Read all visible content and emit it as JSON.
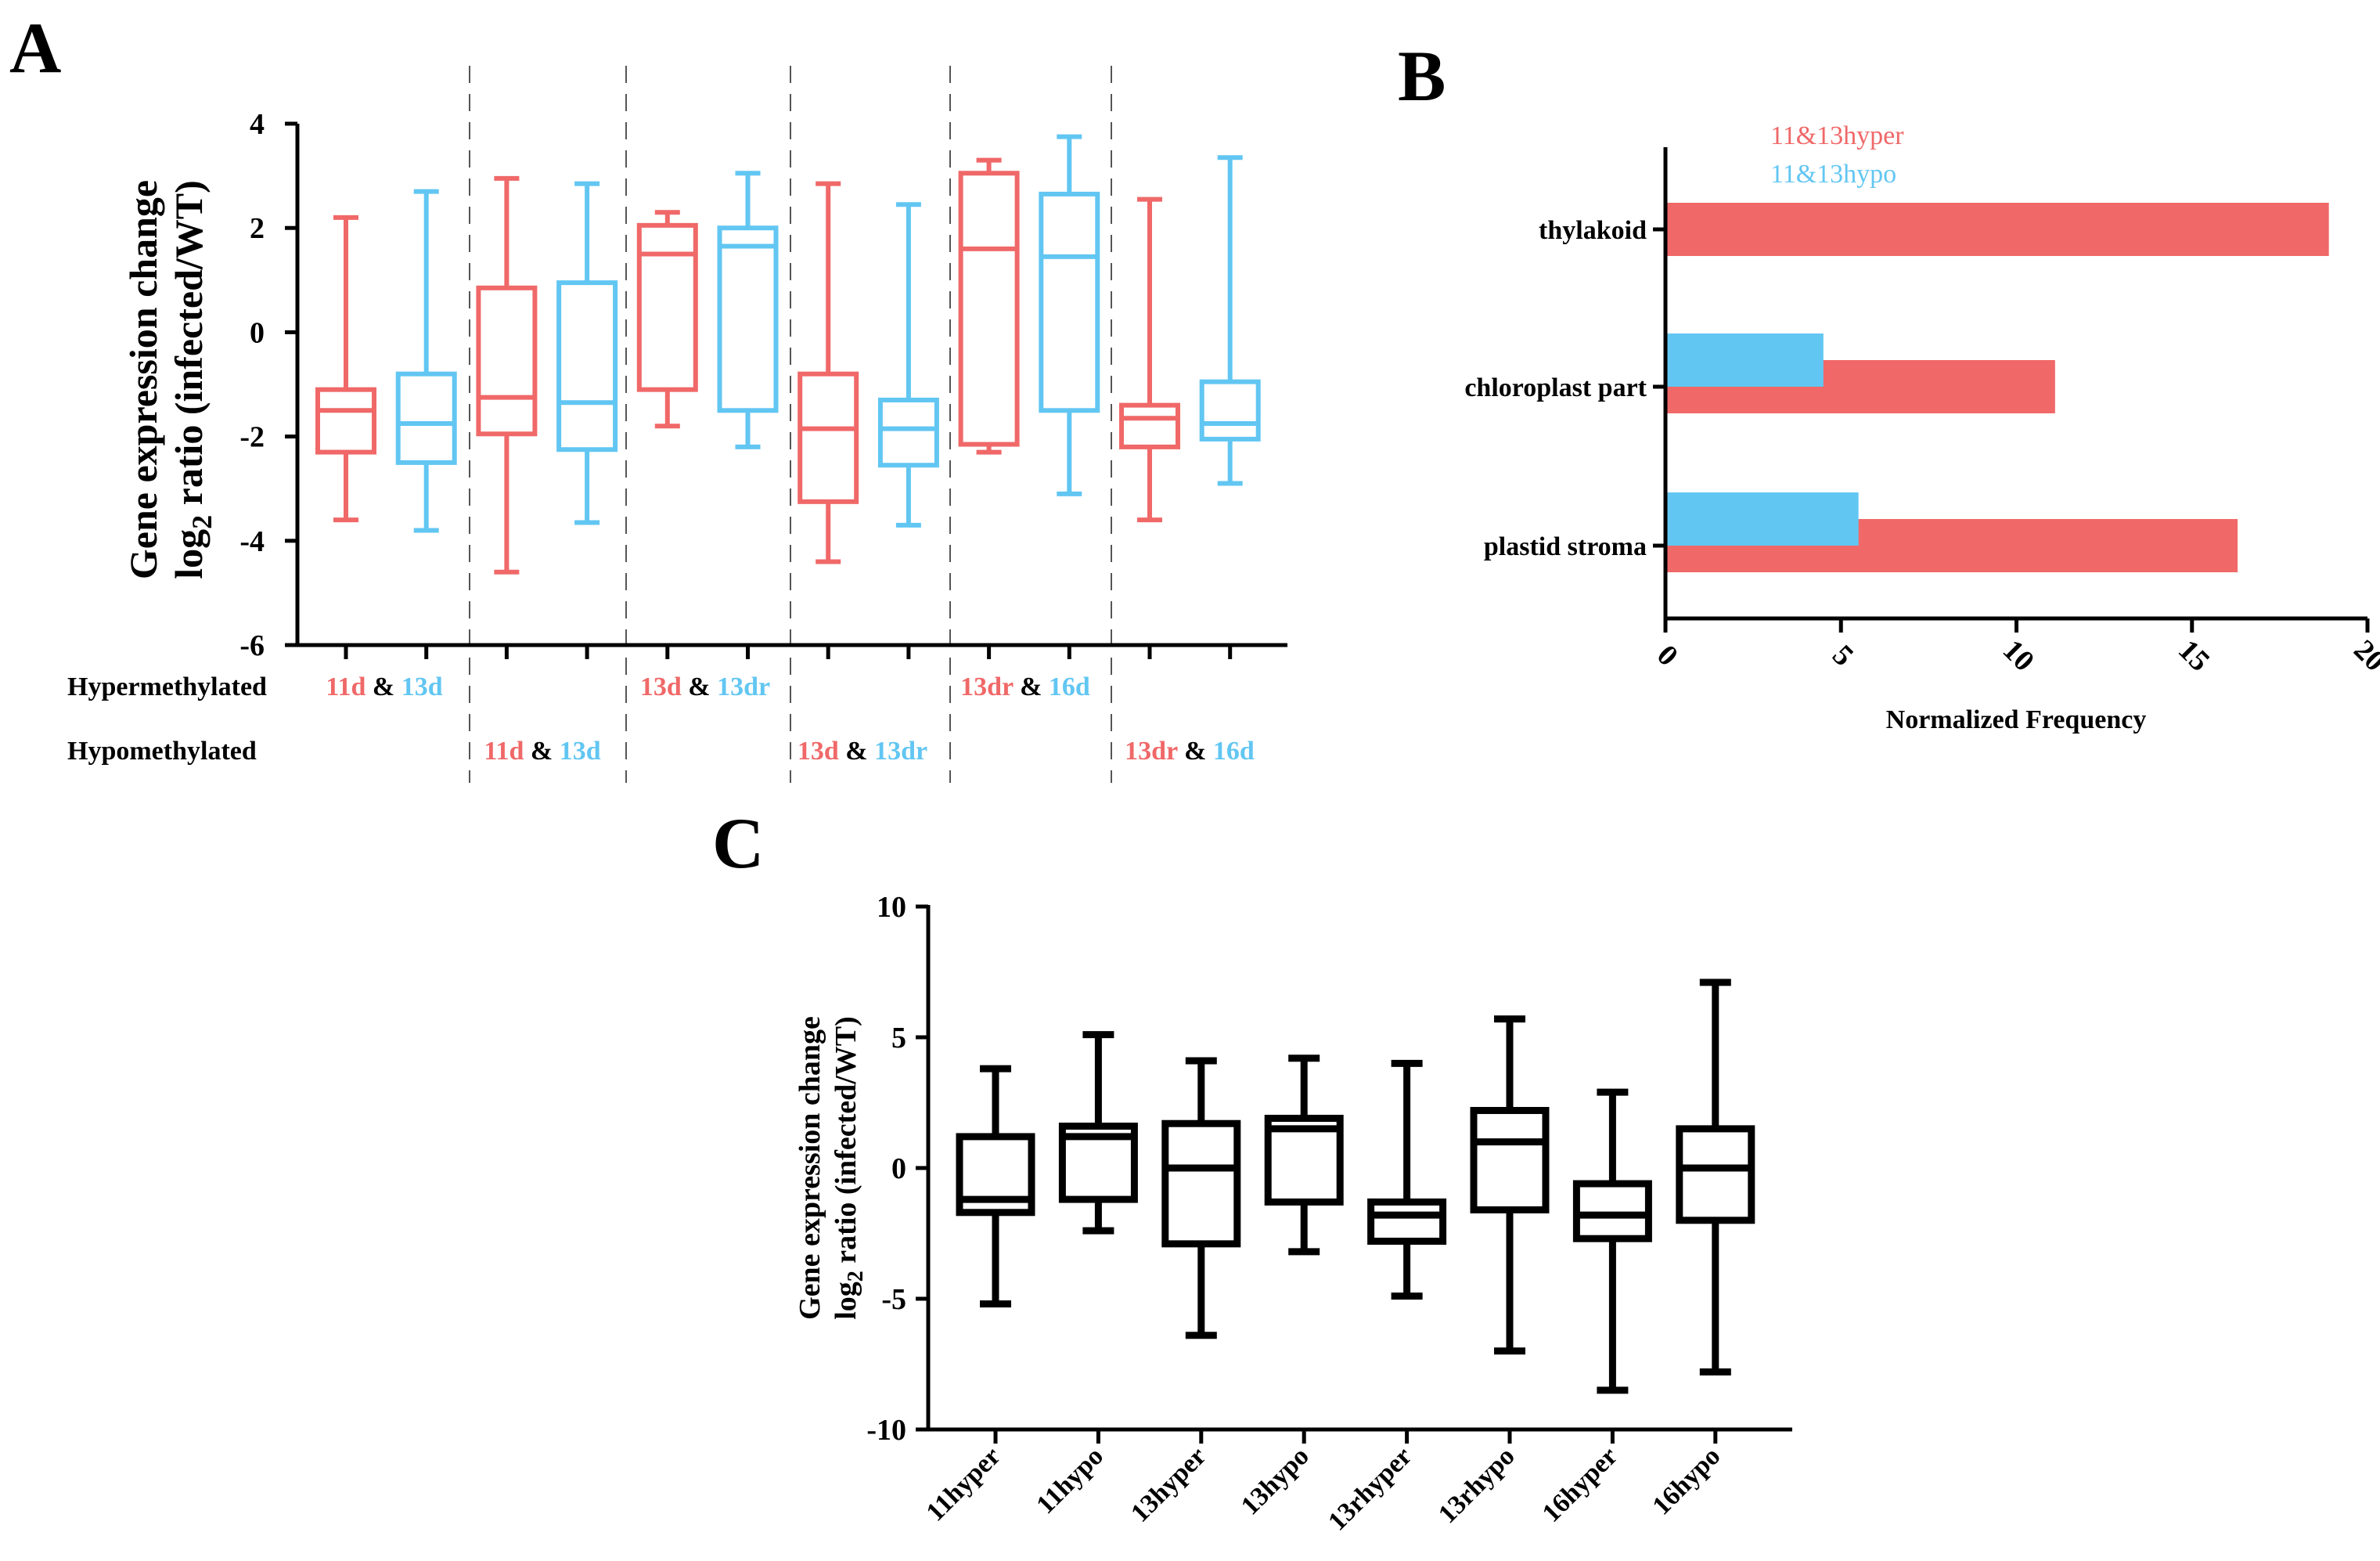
{
  "colors": {
    "red": "#f06868",
    "blue": "#62c6f2",
    "black": "#000000",
    "sep": "#555555"
  },
  "panel_labels": {
    "a": "A",
    "b": "B",
    "c": "C"
  },
  "chart_data": [
    {
      "id": "A",
      "type": "boxplot",
      "ylabel_line1": "Gene expression change",
      "ylabel_line2_prefix": "log",
      "ylabel_line2_sub": "2",
      "ylabel_line2_suffix": " ratio (infected/WT)",
      "ylim": [
        -6,
        4
      ],
      "yticks": [
        4,
        2,
        0,
        -2,
        -4,
        -6
      ],
      "row_labels": {
        "hyper": "Hypermethylated",
        "hypo": "Hypomethylated"
      },
      "amp": "&",
      "boxes": [
        {
          "group": 1,
          "color": "red",
          "min": -3.6,
          "q1": -2.3,
          "median": -1.5,
          "q3": -1.1,
          "max": 2.2
        },
        {
          "group": 1,
          "color": "blue",
          "min": -3.8,
          "q1": -2.5,
          "median": -1.75,
          "q3": -0.8,
          "max": 2.7
        },
        {
          "group": 2,
          "color": "red",
          "min": -4.6,
          "q1": -1.95,
          "median": -1.25,
          "q3": 0.85,
          "max": 2.95
        },
        {
          "group": 2,
          "color": "blue",
          "min": -3.65,
          "q1": -2.25,
          "median": -1.35,
          "q3": 0.95,
          "max": 2.85
        },
        {
          "group": 3,
          "color": "red",
          "min": -1.8,
          "q1": -1.1,
          "median": 1.5,
          "q3": 2.05,
          "max": 2.3
        },
        {
          "group": 3,
          "color": "blue",
          "min": -2.2,
          "q1": -1.5,
          "median": 1.65,
          "q3": 2.0,
          "max": 3.05
        },
        {
          "group": 4,
          "color": "red",
          "min": -4.4,
          "q1": -3.25,
          "median": -1.85,
          "q3": -0.8,
          "max": 2.85
        },
        {
          "group": 4,
          "color": "blue",
          "min": -3.7,
          "q1": -2.55,
          "median": -1.85,
          "q3": -1.3,
          "max": 2.45
        },
        {
          "group": 5,
          "color": "red",
          "min": -2.3,
          "q1": -2.15,
          "median": 1.6,
          "q3": 3.05,
          "max": 3.3
        },
        {
          "group": 5,
          "color": "blue",
          "min": -3.1,
          "q1": -1.5,
          "median": 1.45,
          "q3": 2.65,
          "max": 3.75
        },
        {
          "group": 6,
          "color": "red",
          "min": -3.6,
          "q1": -2.2,
          "median": -1.65,
          "q3": -1.4,
          "max": 2.55
        },
        {
          "group": 6,
          "color": "blue",
          "min": -2.9,
          "q1": -2.05,
          "median": -1.75,
          "q3": -0.95,
          "max": 3.35
        }
      ],
      "conditions": [
        {
          "row": "hyper",
          "group": 1,
          "first": "11d",
          "second": "13d"
        },
        {
          "row": "hyper",
          "group": 3,
          "first": "13d",
          "second": "13dr"
        },
        {
          "row": "hyper",
          "group": 5,
          "first": "13dr",
          "second": "16d"
        },
        {
          "row": "hypo",
          "group": 2,
          "first": "11d",
          "second": "13d"
        },
        {
          "row": "hypo",
          "group": 4,
          "first": "13d",
          "second": "13dr"
        },
        {
          "row": "hypo",
          "group": 6,
          "first": "13dr",
          "second": "16d"
        }
      ]
    },
    {
      "id": "B",
      "type": "horizontal-bar",
      "xlabel": "Normalized Frequency",
      "xlim": [
        0,
        20
      ],
      "xticks": [
        0,
        5,
        10,
        15,
        20
      ],
      "legend": [
        {
          "name": "11&13hyper",
          "color": "red"
        },
        {
          "name": "11&13hypo",
          "color": "blue"
        }
      ],
      "categories": [
        "thylakoid",
        "chloroplast part",
        "plastid stroma"
      ],
      "series": [
        {
          "name": "11&13hyper",
          "color": "red",
          "values": [
            18.9,
            11.1,
            16.3
          ]
        },
        {
          "name": "11&13hypo",
          "color": "blue",
          "values": [
            0,
            4.5,
            5.5
          ]
        }
      ]
    },
    {
      "id": "C",
      "type": "boxplot",
      "ylabel_line1": "Gene expression change",
      "ylabel_line2_prefix": "log",
      "ylabel_line2_sub": "2",
      "ylabel_line2_suffix": " ratio (infected/WT)",
      "ylim": [
        -10,
        10
      ],
      "yticks": [
        10,
        5,
        0,
        -5,
        -10
      ],
      "categories": [
        "11hyper",
        "11hypo",
        "13hyper",
        "13hypo",
        "13rhyper",
        "13rhypo",
        "16hyper",
        "16hypo"
      ],
      "boxes": [
        {
          "min": -5.2,
          "q1": -1.7,
          "median": -1.2,
          "q3": 1.2,
          "max": 3.8
        },
        {
          "min": -2.4,
          "q1": -1.2,
          "median": 1.2,
          "q3": 1.6,
          "max": 5.1
        },
        {
          "min": -6.4,
          "q1": -2.9,
          "median": 0.0,
          "q3": 1.7,
          "max": 4.1
        },
        {
          "min": -3.2,
          "q1": -1.3,
          "median": 1.5,
          "q3": 1.9,
          "max": 4.2
        },
        {
          "min": -4.9,
          "q1": -2.8,
          "median": -1.8,
          "q3": -1.3,
          "max": 4.0
        },
        {
          "min": -7.0,
          "q1": -1.6,
          "median": 1.0,
          "q3": 2.2,
          "max": 5.7
        },
        {
          "min": -8.5,
          "q1": -2.7,
          "median": -1.8,
          "q3": -0.6,
          "max": 2.9
        },
        {
          "min": -7.8,
          "q1": -2.0,
          "median": 0.0,
          "q3": 1.5,
          "max": 7.1
        }
      ]
    }
  ]
}
